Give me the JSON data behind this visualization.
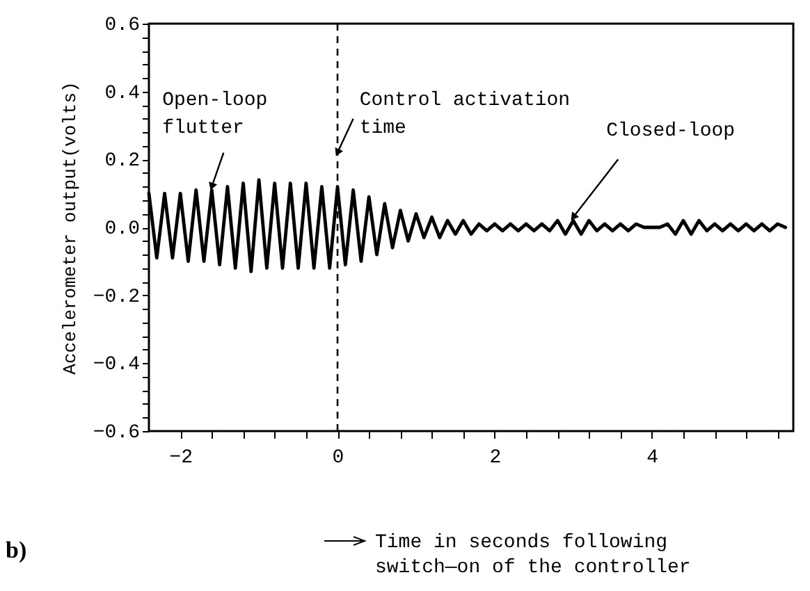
{
  "chart_data": {
    "type": "line",
    "xlabel": "Time in seconds following switch—on of the controller",
    "ylabel": "Accelerometer output(volts)",
    "x": [
      -2.4,
      -2.3,
      -2.2,
      -2.1,
      -2.0,
      -1.9,
      -1.8,
      -1.7,
      -1.6,
      -1.5,
      -1.4,
      -1.3,
      -1.2,
      -1.1,
      -1.0,
      -0.9,
      -0.8,
      -0.7,
      -0.6,
      -0.5,
      -0.4,
      -0.3,
      -0.2,
      -0.1,
      0.0,
      0.1,
      0.2,
      0.3,
      0.4,
      0.5,
      0.6,
      0.7,
      0.8,
      0.9,
      1.0,
      1.1,
      1.2,
      1.3,
      1.4,
      1.5,
      1.6,
      1.7,
      1.8,
      1.9,
      2.0,
      2.1,
      2.2,
      2.3,
      2.4,
      2.5,
      2.6,
      2.7,
      2.8,
      2.9,
      3.0,
      3.1,
      3.2,
      3.3,
      3.4,
      3.5,
      3.6,
      3.7,
      3.8,
      3.9,
      4.0,
      4.1,
      4.2,
      4.3,
      4.4,
      4.5,
      4.6,
      4.7,
      4.8,
      4.9,
      5.0,
      5.1,
      5.2,
      5.3,
      5.4,
      5.5,
      5.6,
      5.7
    ],
    "series": [
      {
        "color": "#000000",
        "values": [
          0.1,
          -0.09,
          0.1,
          -0.09,
          0.1,
          -0.1,
          0.11,
          -0.1,
          0.11,
          -0.11,
          0.12,
          -0.12,
          0.13,
          -0.13,
          0.14,
          -0.12,
          0.13,
          -0.12,
          0.13,
          -0.12,
          0.13,
          -0.12,
          0.12,
          -0.12,
          0.12,
          -0.11,
          0.11,
          -0.1,
          0.09,
          -0.08,
          0.07,
          -0.06,
          0.05,
          -0.04,
          0.04,
          -0.03,
          0.03,
          -0.03,
          0.02,
          -0.02,
          0.02,
          -0.02,
          0.01,
          -0.01,
          0.01,
          -0.01,
          0.01,
          -0.01,
          0.01,
          -0.01,
          0.01,
          -0.01,
          0.02,
          -0.02,
          0.02,
          -0.02,
          0.02,
          -0.01,
          0.01,
          -0.01,
          0.01,
          -0.01,
          0.01,
          0.0,
          0.0,
          0.0,
          0.01,
          -0.02,
          0.02,
          -0.02,
          0.02,
          -0.01,
          0.01,
          -0.01,
          0.01,
          -0.01,
          0.01,
          -0.01,
          0.01,
          -0.01,
          0.01,
          0.0
        ]
      }
    ],
    "xlim": [
      -2.4,
      5.8
    ],
    "xticks": [
      {
        "value": -2,
        "label": "−2"
      },
      {
        "value": -1.6,
        "label": null
      },
      {
        "value": -1.2,
        "label": null
      },
      {
        "value": -0.8,
        "label": null
      },
      {
        "value": -0.4,
        "label": null
      },
      0,
      {
        "value": 0.4,
        "label": null
      },
      {
        "value": 0.8,
        "label": null
      },
      {
        "value": 1.2,
        "label": null
      },
      {
        "value": 1.6,
        "label": null
      },
      2,
      {
        "value": 2.4,
        "label": null
      },
      {
        "value": 2.8,
        "label": null
      },
      {
        "value": 3.2,
        "label": null
      },
      {
        "value": 3.6,
        "label": null
      },
      4,
      {
        "value": 4.4,
        "label": null
      },
      {
        "value": 4.8,
        "label": null
      },
      {
        "value": 5.2,
        "label": null
      },
      {
        "value": 5.6,
        "label": null
      }
    ],
    "ylim": [
      -0.6,
      0.6
    ],
    "yticks": [
      {
        "value": -0.6,
        "label": "−0.6"
      },
      {
        "value": -0.56,
        "label": null
      },
      {
        "value": -0.52,
        "label": null
      },
      {
        "value": -0.48,
        "label": null
      },
      {
        "value": -0.44,
        "label": null
      },
      {
        "value": -0.4,
        "label": "−0.4"
      },
      {
        "value": -0.36,
        "label": null
      },
      {
        "value": -0.32,
        "label": null
      },
      {
        "value": -0.28,
        "label": null
      },
      {
        "value": -0.24,
        "label": null
      },
      {
        "value": -0.2,
        "label": "−0.2"
      },
      {
        "value": -0.16,
        "label": null
      },
      {
        "value": -0.12,
        "label": null
      },
      {
        "value": -0.08,
        "label": null
      },
      {
        "value": -0.04,
        "label": null
      },
      {
        "value": 0,
        "label": "0.0"
      },
      {
        "value": 0.04,
        "label": null
      },
      {
        "value": 0.08,
        "label": null
      },
      {
        "value": 0.12,
        "label": null
      },
      {
        "value": 0.16,
        "label": null
      },
      {
        "value": 0.2,
        "label": "0.2"
      },
      {
        "value": 0.24,
        "label": null
      },
      {
        "value": 0.28,
        "label": null
      },
      {
        "value": 0.32,
        "label": null
      },
      {
        "value": 0.36,
        "label": null
      },
      {
        "value": 0.4,
        "label": "0.4"
      },
      {
        "value": 0.44,
        "label": null
      },
      {
        "value": 0.48,
        "label": null
      },
      {
        "value": 0.52,
        "label": null
      },
      {
        "value": 0.56,
        "label": null
      },
      {
        "value": 0.6,
        "label": "0.6"
      }
    ],
    "grid": false,
    "marker": "none",
    "line_style": "solid",
    "ref_lines": [
      {
        "axis": "x",
        "value": 0,
        "line_style": "dashed",
        "color": "#000000"
      }
    ],
    "annotations": [
      {
        "text": "Open-loop flutter",
        "x": -1.6,
        "y": 0.12
      },
      {
        "text": "Control activation time",
        "x": 0,
        "y": 0.22
      },
      {
        "text": "Closed-loop",
        "x": 3,
        "y": 0.03
      },
      "b)"
    ]
  }
}
